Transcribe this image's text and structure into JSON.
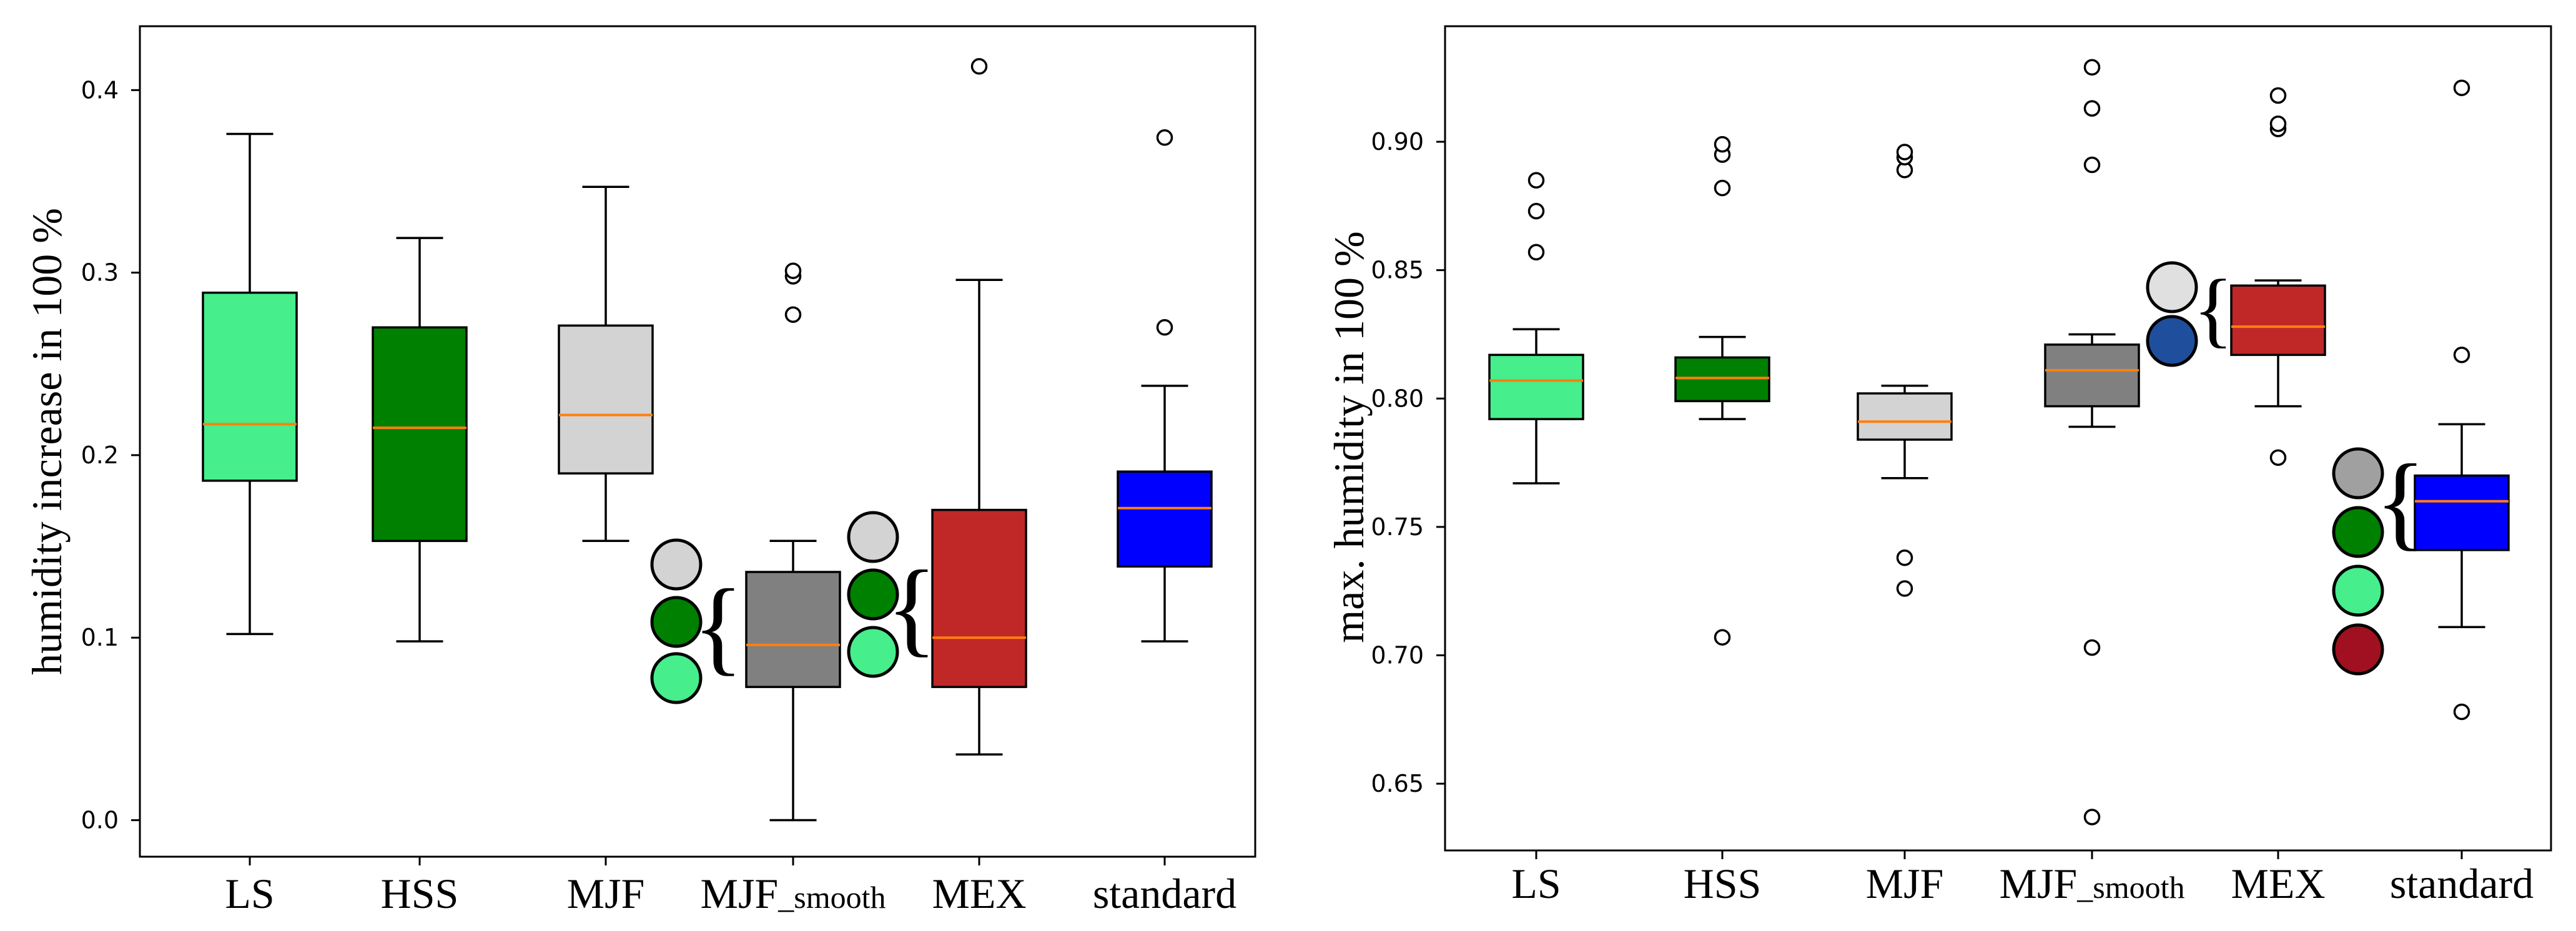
{
  "chart_data": [
    {
      "type": "box",
      "ylabel": "humidity increase in 100 %",
      "ylim": [
        -0.02,
        0.435
      ],
      "yticks": [
        0.0,
        0.1,
        0.2,
        0.3,
        0.4
      ],
      "ytick_labels": [
        "0.0",
        "0.1",
        "0.2",
        "0.3",
        "0.4"
      ],
      "median_color": "#ff7f0e",
      "categories": [
        {
          "label": "LS",
          "sub": "",
          "color": "#46ee8c",
          "whislo": 0.102,
          "q1": 0.186,
          "med": 0.217,
          "q3": 0.289,
          "whishi": 0.376,
          "fliers": []
        },
        {
          "label": "HSS",
          "sub": "",
          "color": "#008000",
          "whislo": 0.098,
          "q1": 0.153,
          "med": 0.215,
          "q3": 0.27,
          "whishi": 0.319,
          "fliers": []
        },
        {
          "label": "MJF",
          "sub": "",
          "color": "#d3d3d3",
          "whislo": 0.153,
          "q1": 0.19,
          "med": 0.222,
          "q3": 0.271,
          "whishi": 0.347,
          "fliers": []
        },
        {
          "label": "MJF",
          "sub": "_smooth",
          "color": "#808080",
          "whislo": 0.0,
          "q1": 0.073,
          "med": 0.096,
          "q3": 0.136,
          "whishi": 0.153,
          "fliers": [
            0.277,
            0.298,
            0.301
          ]
        },
        {
          "label": "MEX",
          "sub": "",
          "color": "#c02828",
          "whislo": 0.036,
          "q1": 0.073,
          "med": 0.1,
          "q3": 0.17,
          "whishi": 0.296,
          "fliers": [
            0.413
          ]
        },
        {
          "label": "standard",
          "sub": "",
          "color": "#0000ff",
          "whislo": 0.098,
          "q1": 0.139,
          "med": 0.171,
          "q3": 0.191,
          "whishi": 0.238,
          "fliers": [
            0.27,
            0.374
          ]
        }
      ],
      "legend_groups": [
        {
          "dots": [
            "#d3d3d3",
            "#008000",
            "#46ee8c"
          ]
        },
        {
          "dots": [
            "#d3d3d3",
            "#008000",
            "#46ee8c"
          ]
        }
      ]
    },
    {
      "type": "box",
      "ylabel": "max. humidity in 100 %",
      "ylim": [
        0.624,
        0.945
      ],
      "yticks": [
        0.65,
        0.7,
        0.75,
        0.8,
        0.85,
        0.9
      ],
      "ytick_labels": [
        "0.65",
        "0.70",
        "0.75",
        "0.80",
        "0.85",
        "0.90"
      ],
      "median_color": "#ff7f0e",
      "categories": [
        {
          "label": "LS",
          "sub": "",
          "color": "#46ee8c",
          "whislo": 0.767,
          "q1": 0.792,
          "med": 0.807,
          "q3": 0.817,
          "whishi": 0.827,
          "fliers": [
            0.857,
            0.873,
            0.885
          ]
        },
        {
          "label": "HSS",
          "sub": "",
          "color": "#008000",
          "whislo": 0.792,
          "q1": 0.799,
          "med": 0.808,
          "q3": 0.816,
          "whishi": 0.824,
          "fliers": [
            0.707,
            0.882,
            0.895,
            0.899
          ]
        },
        {
          "label": "MJF",
          "sub": "",
          "color": "#d3d3d3",
          "whislo": 0.769,
          "q1": 0.784,
          "med": 0.791,
          "q3": 0.802,
          "whishi": 0.805,
          "fliers": [
            0.726,
            0.738,
            0.889,
            0.894,
            0.896
          ]
        },
        {
          "label": "MJF",
          "sub": "_smooth",
          "color": "#808080",
          "whislo": 0.789,
          "q1": 0.797,
          "med": 0.811,
          "q3": 0.821,
          "whishi": 0.825,
          "fliers": [
            0.637,
            0.703,
            0.891,
            0.913,
            0.929
          ]
        },
        {
          "label": "MEX",
          "sub": "",
          "color": "#c02828",
          "whislo": 0.797,
          "q1": 0.817,
          "med": 0.828,
          "q3": 0.844,
          "whishi": 0.846,
          "fliers": [
            0.777,
            0.905,
            0.907,
            0.918
          ]
        },
        {
          "label": "standard",
          "sub": "",
          "color": "#0000ff",
          "whislo": 0.711,
          "q1": 0.741,
          "med": 0.76,
          "q3": 0.77,
          "whishi": 0.79,
          "fliers": [
            0.678,
            0.817,
            0.921
          ]
        }
      ],
      "legend_groups": [
        {
          "dots": [
            "#e0e0e0",
            "#1f4e9c"
          ]
        },
        {
          "dots": [
            "#a0a0a0",
            "#008000",
            "#46ee8c",
            "#a01020"
          ]
        }
      ]
    }
  ]
}
